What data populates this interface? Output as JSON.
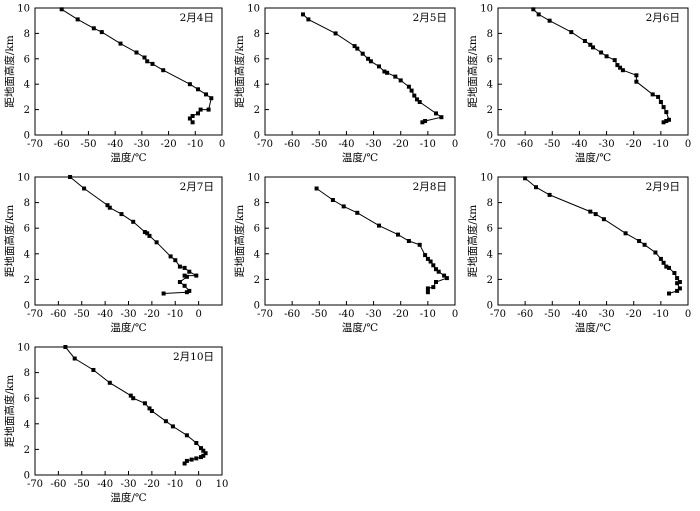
{
  "chart_data": [
    {
      "type": "line",
      "title": "2月4日",
      "xlabel": "温度/℃",
      "ylabel": "距地面高度/km",
      "xlim": [
        -70,
        0
      ],
      "ylim": [
        0,
        10
      ],
      "xticks": [
        -70,
        -60,
        -50,
        -40,
        -30,
        -20,
        -10,
        0
      ],
      "yticks": [
        0,
        2,
        4,
        6,
        8,
        10
      ],
      "grid": false,
      "legend": "none",
      "marker": "square",
      "x": [
        -60,
        -54,
        -48,
        -45,
        -38,
        -32,
        -29,
        -28,
        -26,
        -22,
        -12,
        -9,
        -6,
        -4,
        -5,
        -8,
        -9,
        -11,
        -12,
        -11
      ],
      "y": [
        9.9,
        9.1,
        8.4,
        8.1,
        7.2,
        6.5,
        6.1,
        5.8,
        5.6,
        5.1,
        4.0,
        3.6,
        3.2,
        2.9,
        2.0,
        2.0,
        1.7,
        1.5,
        1.3,
        1.0
      ]
    },
    {
      "type": "line",
      "title": "2月5日",
      "xlabel": "温度/℃",
      "ylabel": "距地面高度/km",
      "xlim": [
        -70,
        0
      ],
      "ylim": [
        0,
        10
      ],
      "xticks": [
        -70,
        -60,
        -50,
        -40,
        -30,
        -20,
        -10,
        0
      ],
      "yticks": [
        0,
        2,
        4,
        6,
        8,
        10
      ],
      "grid": false,
      "legend": "none",
      "marker": "square",
      "x": [
        -56,
        -54,
        -44,
        -37,
        -36,
        -34,
        -32,
        -31,
        -28,
        -26,
        -25,
        -22,
        -20,
        -17,
        -16,
        -15,
        -14,
        -13,
        -7,
        -5,
        -11,
        -12
      ],
      "y": [
        9.5,
        9.1,
        8.0,
        7.0,
        6.8,
        6.4,
        6.0,
        5.8,
        5.4,
        5.0,
        4.9,
        4.6,
        4.3,
        3.8,
        3.5,
        3.1,
        2.8,
        2.6,
        1.7,
        1.4,
        1.1,
        1.0
      ]
    },
    {
      "type": "line",
      "title": "2月6日",
      "xlabel": "温度/℃",
      "ylabel": "距地面高度/km",
      "xlim": [
        -70,
        0
      ],
      "ylim": [
        0,
        10
      ],
      "xticks": [
        -70,
        -60,
        -50,
        -40,
        -30,
        -20,
        -10,
        0
      ],
      "yticks": [
        0,
        2,
        4,
        6,
        8,
        10
      ],
      "grid": false,
      "legend": "none",
      "marker": "square",
      "x": [
        -57,
        -55,
        -51,
        -43,
        -38,
        -36,
        -35,
        -32,
        -30,
        -27,
        -26,
        -25,
        -24,
        -19,
        -19,
        -13,
        -11,
        -10,
        -9,
        -8,
        -7,
        -8,
        -9
      ],
      "y": [
        9.9,
        9.5,
        9.0,
        8.1,
        7.4,
        7.1,
        6.9,
        6.5,
        6.2,
        5.9,
        5.5,
        5.3,
        5.1,
        4.7,
        4.2,
        3.2,
        3.0,
        2.6,
        2.2,
        1.8,
        1.2,
        1.1,
        1.0
      ]
    },
    {
      "type": "line",
      "title": "2月7日",
      "xlabel": "温度/℃",
      "ylabel": "距地面高度/km",
      "xlim": [
        -70,
        10
      ],
      "ylim": [
        0,
        10
      ],
      "xticks": [
        -70,
        -60,
        -50,
        -40,
        -30,
        -20,
        -10,
        0
      ],
      "yticks": [
        0,
        2,
        4,
        6,
        8,
        10
      ],
      "grid": false,
      "legend": "none",
      "marker": "square",
      "x": [
        -55,
        -49,
        -39,
        -38,
        -33,
        -28,
        -23,
        -22,
        -21,
        -18,
        -12,
        -10,
        -8,
        -6,
        -4,
        -1,
        -6,
        -5,
        -8,
        -6,
        -4,
        -5,
        -15
      ],
      "y": [
        10.0,
        9.1,
        7.8,
        7.6,
        7.1,
        6.5,
        5.7,
        5.6,
        5.4,
        4.9,
        3.8,
        3.5,
        3.0,
        2.9,
        2.6,
        2.3,
        2.3,
        2.2,
        1.8,
        1.5,
        1.1,
        1.0,
        0.9
      ]
    },
    {
      "type": "line",
      "title": "2月8日",
      "xlabel": "温度/℃",
      "ylabel": "距地面高度/km",
      "xlim": [
        -70,
        0
      ],
      "ylim": [
        0,
        10
      ],
      "xticks": [
        -70,
        -60,
        -50,
        -40,
        -30,
        -20,
        -10,
        0
      ],
      "yticks": [
        0,
        2,
        4,
        6,
        8,
        10
      ],
      "grid": false,
      "legend": "none",
      "marker": "square",
      "x": [
        -51,
        -45,
        -41,
        -36,
        -28,
        -21,
        -17,
        -13,
        -11,
        -10,
        -9,
        -8,
        -7,
        -6,
        -4,
        -3,
        -7,
        -8,
        -10,
        -10
      ],
      "y": [
        9.1,
        8.2,
        7.7,
        7.2,
        6.2,
        5.5,
        5.0,
        4.7,
        3.9,
        3.6,
        3.4,
        3.1,
        2.8,
        2.6,
        2.3,
        2.1,
        1.8,
        1.4,
        1.3,
        1.0
      ]
    },
    {
      "type": "line",
      "title": "2月9日",
      "xlabel": "温度/℃",
      "ylabel": "距地面高度/km",
      "xlim": [
        -70,
        0
      ],
      "ylim": [
        0,
        10
      ],
      "xticks": [
        -70,
        -60,
        -50,
        -40,
        -30,
        -20,
        -10,
        0
      ],
      "yticks": [
        0,
        2,
        4,
        6,
        8,
        10
      ],
      "grid": false,
      "legend": "none",
      "marker": "square",
      "x": [
        -60,
        -56,
        -51,
        -36,
        -34,
        -31,
        -23,
        -18,
        -16,
        -12,
        -10,
        -9,
        -8,
        -7,
        -5,
        -4,
        -3,
        -4,
        -3,
        -4,
        -7
      ],
      "y": [
        9.9,
        9.2,
        8.6,
        7.3,
        7.1,
        6.7,
        5.6,
        5.0,
        4.7,
        4.1,
        3.6,
        3.3,
        3.0,
        2.9,
        2.5,
        2.1,
        1.8,
        1.7,
        1.3,
        1.1,
        0.9
      ]
    },
    {
      "type": "line",
      "title": "2月10日",
      "xlabel": "温度/℃",
      "ylabel": "距地面高度/km",
      "xlim": [
        -70,
        10
      ],
      "ylim": [
        0,
        10
      ],
      "xticks": [
        -70,
        -60,
        -50,
        -40,
        -30,
        -20,
        -10,
        0,
        10
      ],
      "yticks": [
        0,
        2,
        4,
        6,
        8,
        10
      ],
      "grid": false,
      "legend": "none",
      "marker": "square",
      "x": [
        -57,
        -53,
        -45,
        -38,
        -29,
        -28,
        -23,
        -21,
        -20,
        -14,
        -11,
        -5,
        -1,
        1,
        2,
        3,
        2,
        1,
        -1,
        -3,
        -5,
        -6
      ],
      "y": [
        10.0,
        9.1,
        8.2,
        7.2,
        6.2,
        6.0,
        5.6,
        5.2,
        5.0,
        4.2,
        3.8,
        3.1,
        2.5,
        2.1,
        1.9,
        1.7,
        1.5,
        1.4,
        1.3,
        1.2,
        1.1,
        0.9
      ]
    }
  ]
}
